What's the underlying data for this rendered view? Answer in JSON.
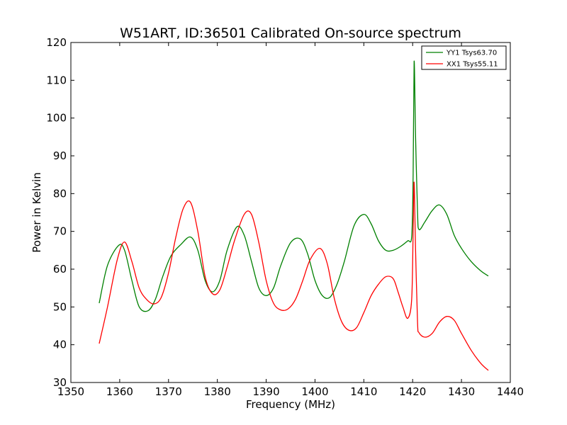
{
  "chart_data": {
    "type": "line",
    "title": "W51ART, ID:36501 Calibrated On-source spectrum",
    "xlabel": "Frequency (MHz)",
    "ylabel": "Power in Kelvin",
    "xlim": [
      1350,
      1440
    ],
    "ylim": [
      30,
      120
    ],
    "xticks": [
      "1350",
      "1360",
      "1370",
      "1380",
      "1390",
      "1400",
      "1410",
      "1420",
      "1430",
      "1440"
    ],
    "yticks": [
      "30",
      "40",
      "50",
      "60",
      "70",
      "80",
      "90",
      "100",
      "110",
      "120"
    ],
    "grid": false,
    "legend_position": "top-right",
    "series": [
      {
        "name": "YY1 Tsys63.70",
        "color": "#008000",
        "x": [
          1355.8,
          1357.5,
          1359.8,
          1361.0,
          1362.5,
          1364.0,
          1365.8,
          1367.3,
          1368.8,
          1370.5,
          1372.5,
          1374.5,
          1376.0,
          1377.5,
          1379.0,
          1380.5,
          1382.0,
          1384.0,
          1385.5,
          1387.0,
          1388.5,
          1390.0,
          1391.5,
          1393.0,
          1395.0,
          1397.0,
          1398.5,
          1400.0,
          1401.5,
          1403.0,
          1404.5,
          1406.0,
          1408.0,
          1410.0,
          1411.5,
          1413.0,
          1414.5,
          1416.0,
          1417.5,
          1419.0,
          1419.8,
          1420.1,
          1420.3,
          1420.6,
          1421.0,
          1421.3,
          1422.5,
          1424.0,
          1425.5,
          1427.0,
          1428.5,
          1430.0,
          1432.0,
          1434.0,
          1435.5
        ],
        "values": [
          51.0,
          61.0,
          66.3,
          65.0,
          57.0,
          50.0,
          49.0,
          52.0,
          58.0,
          63.5,
          66.5,
          68.5,
          65.0,
          57.0,
          54.0,
          57.0,
          65.0,
          71.2,
          69.0,
          62.0,
          55.0,
          53.0,
          55.0,
          61.0,
          67.0,
          68.0,
          64.0,
          57.0,
          53.0,
          52.5,
          56.0,
          62.0,
          71.5,
          74.5,
          72.0,
          67.5,
          65.0,
          65.0,
          66.0,
          67.5,
          68.5,
          85.0,
          115.0,
          95.0,
          75.0,
          70.5,
          72.5,
          75.5,
          77.0,
          74.5,
          69.0,
          65.5,
          62.0,
          59.5,
          58.2
        ]
      },
      {
        "name": "XX1 Tsys55.11",
        "color": "#ff0000",
        "x": [
          1355.8,
          1357.5,
          1359.5,
          1361.0,
          1362.5,
          1364.0,
          1365.5,
          1367.0,
          1368.5,
          1370.0,
          1371.5,
          1373.0,
          1374.5,
          1376.0,
          1377.5,
          1379.0,
          1380.5,
          1382.0,
          1383.5,
          1385.5,
          1387.0,
          1388.5,
          1390.0,
          1391.5,
          1393.0,
          1394.5,
          1396.0,
          1397.5,
          1399.0,
          1401.0,
          1402.5,
          1404.0,
          1405.5,
          1407.0,
          1408.5,
          1410.0,
          1411.5,
          1413.0,
          1414.5,
          1416.0,
          1417.0,
          1418.0,
          1419.0,
          1419.8,
          1420.1,
          1420.3,
          1420.6,
          1421.0,
          1421.3,
          1422.5,
          1424.0,
          1425.5,
          1427.0,
          1428.5,
          1430.0,
          1432.0,
          1434.0,
          1435.5
        ],
        "values": [
          40.3,
          50.0,
          62.5,
          67.2,
          62.0,
          55.0,
          52.0,
          50.8,
          52.5,
          59.0,
          68.5,
          76.0,
          77.7,
          70.0,
          58.0,
          53.5,
          54.5,
          60.5,
          67.5,
          74.5,
          74.5,
          67.0,
          57.0,
          51.0,
          49.2,
          49.5,
          52.0,
          57.0,
          62.5,
          65.5,
          61.5,
          52.0,
          46.0,
          43.8,
          44.5,
          48.5,
          53.0,
          56.0,
          58.0,
          57.5,
          54.0,
          50.0,
          47.0,
          52.0,
          70.0,
          83.0,
          65.0,
          46.0,
          43.2,
          42.0,
          43.0,
          46.0,
          47.5,
          46.5,
          43.0,
          38.5,
          35.0,
          33.2
        ]
      }
    ]
  }
}
